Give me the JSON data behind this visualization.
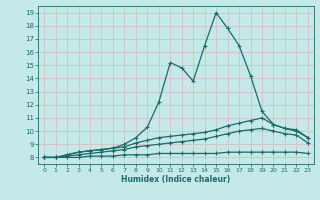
{
  "xlabel": "Humidex (Indice chaleur)",
  "ylabel": "",
  "bg_color": "#c5e8e8",
  "grid_color": "#b0d8d8",
  "line_color": "#1a6b6b",
  "xlim": [
    -0.5,
    23.5
  ],
  "ylim": [
    7.5,
    19.5
  ],
  "xticks": [
    0,
    1,
    2,
    3,
    4,
    5,
    6,
    7,
    8,
    9,
    10,
    11,
    12,
    13,
    14,
    15,
    16,
    17,
    18,
    19,
    20,
    21,
    22,
    23
  ],
  "yticks": [
    8,
    9,
    10,
    11,
    12,
    13,
    14,
    15,
    16,
    17,
    18,
    19
  ],
  "series": [
    {
      "x": [
        0,
        1,
        2,
        3,
        4,
        5,
        6,
        7,
        8,
        9,
        10,
        11,
        12,
        13,
        14,
        15,
        16,
        17,
        18,
        19,
        20,
        21,
        22,
        23
      ],
      "y": [
        8,
        8,
        8.2,
        8.4,
        8.5,
        8.6,
        8.7,
        9.0,
        9.5,
        10.3,
        12.2,
        15.2,
        14.8,
        13.8,
        16.5,
        19.0,
        17.8,
        16.5,
        14.2,
        11.5,
        10.5,
        10.2,
        10.0,
        9.5
      ],
      "marker": "+",
      "markersize": 3.5,
      "linewidth": 0.9
    },
    {
      "x": [
        0,
        1,
        2,
        3,
        4,
        5,
        6,
        7,
        8,
        9,
        10,
        11,
        12,
        13,
        14,
        15,
        16,
        17,
        18,
        19,
        20,
        21,
        22,
        23
      ],
      "y": [
        8,
        8,
        8.2,
        8.4,
        8.5,
        8.6,
        8.7,
        8.8,
        9.1,
        9.3,
        9.5,
        9.6,
        9.7,
        9.8,
        9.9,
        10.1,
        10.4,
        10.6,
        10.8,
        11.0,
        10.5,
        10.2,
        10.1,
        9.5
      ],
      "marker": "+",
      "markersize": 3.5,
      "linewidth": 0.9
    },
    {
      "x": [
        0,
        1,
        2,
        3,
        4,
        5,
        6,
        7,
        8,
        9,
        10,
        11,
        12,
        13,
        14,
        15,
        16,
        17,
        18,
        19,
        20,
        21,
        22,
        23
      ],
      "y": [
        8,
        8,
        8.1,
        8.2,
        8.3,
        8.4,
        8.5,
        8.6,
        8.8,
        8.9,
        9.0,
        9.1,
        9.2,
        9.3,
        9.4,
        9.6,
        9.8,
        10.0,
        10.1,
        10.2,
        10.0,
        9.8,
        9.7,
        9.1
      ],
      "marker": "+",
      "markersize": 3.5,
      "linewidth": 0.9
    },
    {
      "x": [
        0,
        1,
        2,
        3,
        4,
        5,
        6,
        7,
        8,
        9,
        10,
        11,
        12,
        13,
        14,
        15,
        16,
        17,
        18,
        19,
        20,
        21,
        22,
        23
      ],
      "y": [
        8,
        8,
        8.0,
        8.0,
        8.1,
        8.1,
        8.1,
        8.2,
        8.2,
        8.2,
        8.3,
        8.3,
        8.3,
        8.3,
        8.3,
        8.3,
        8.4,
        8.4,
        8.4,
        8.4,
        8.4,
        8.4,
        8.4,
        8.3
      ],
      "marker": "+",
      "markersize": 3.5,
      "linewidth": 0.9
    }
  ]
}
